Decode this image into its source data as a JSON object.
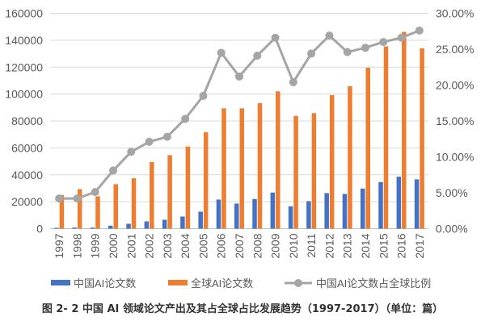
{
  "chart_data": {
    "type": "bar+line",
    "categories": [
      "1997",
      "1998",
      "1999",
      "2000",
      "2001",
      "2002",
      "2003",
      "2004",
      "2005",
      "2006",
      "2007",
      "2008",
      "2009",
      "2010",
      "2011",
      "2012",
      "2013",
      "2014",
      "2015",
      "2016",
      "2017"
    ],
    "series": [
      {
        "name": "中国AI论文数",
        "type": "bar",
        "axis": "left",
        "color": "#4472C4",
        "values": [
          600,
          800,
          800,
          2200,
          3600,
          5400,
          6600,
          9000,
          12600,
          21600,
          18600,
          22000,
          26800,
          16600,
          20400,
          26400,
          25800,
          29800,
          34600,
          38600,
          36600
        ]
      },
      {
        "name": "全球AI论文数",
        "type": "bar",
        "axis": "left",
        "color": "#ED7D31",
        "values": [
          25000,
          29400,
          24000,
          33000,
          37400,
          49400,
          54600,
          61000,
          71600,
          89400,
          89400,
          93200,
          102000,
          83800,
          85800,
          99200,
          105800,
          119600,
          135400,
          146200,
          134000
        ]
      },
      {
        "name": "中国AI论文数占全球比例",
        "type": "line",
        "axis": "right",
        "color": "#A5A5A5",
        "values": [
          4.2,
          4.2,
          5.1,
          8.1,
          10.7,
          12.1,
          12.8,
          15.3,
          18.5,
          24.5,
          21.2,
          24.1,
          26.6,
          20.4,
          24.4,
          26.9,
          24.6,
          25.2,
          26.0,
          26.6,
          27.6
        ]
      }
    ],
    "left_axis": {
      "ylim": [
        0,
        160000
      ],
      "ticks": [
        "0",
        "20000",
        "40000",
        "60000",
        "80000",
        "100000",
        "120000",
        "140000",
        "160000"
      ]
    },
    "right_axis": {
      "ylim": [
        0,
        30
      ],
      "ticks": [
        "0.00%",
        "5.00%",
        "10.00%",
        "15.00%",
        "20.00%",
        "25.00%",
        "30.00%"
      ]
    },
    "grid": true,
    "legend": "bottom"
  },
  "caption": "图 2- 2  中国 AI 领域论文产出及其占全球占比发展趋势（1997-2017）（单位：篇）"
}
